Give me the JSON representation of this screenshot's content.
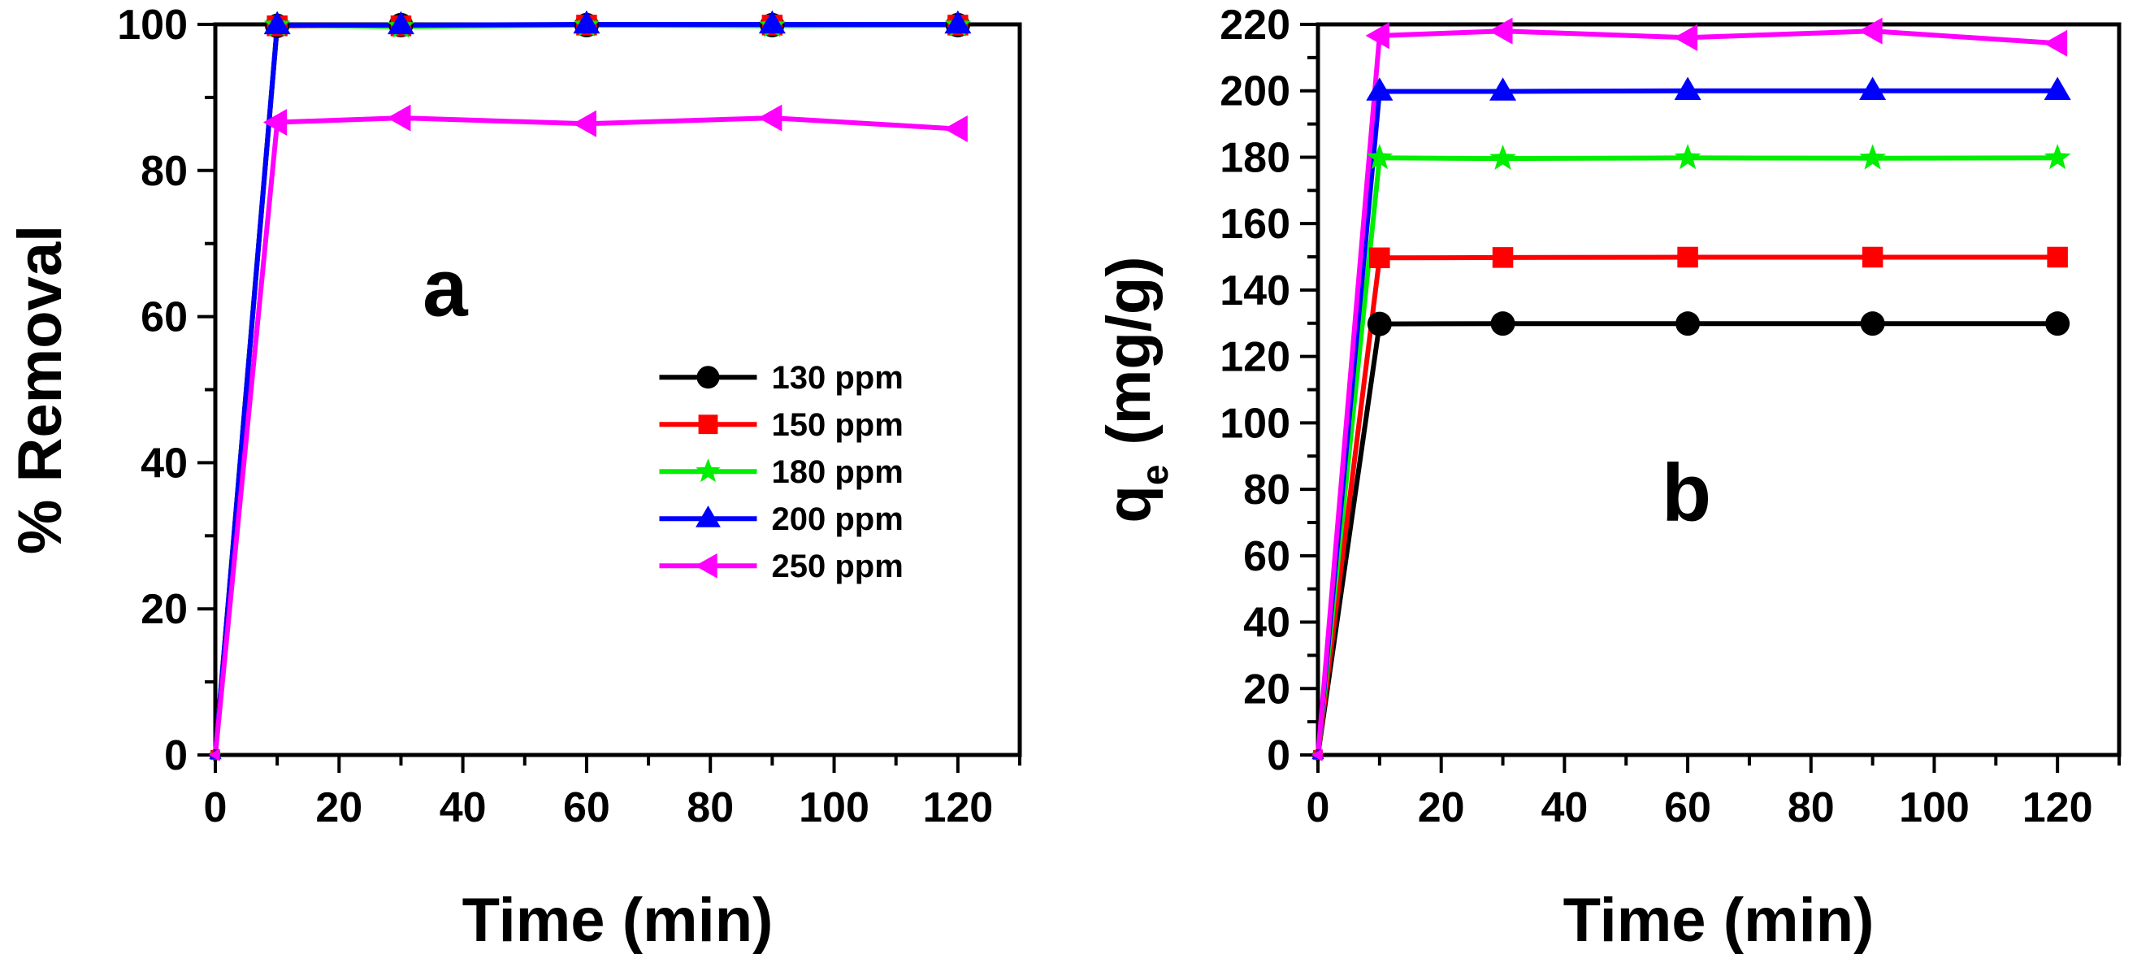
{
  "chart_data": [
    {
      "type": "line",
      "panel_label": "a",
      "xlabel": "Time (min)",
      "ylabel": "% Removal",
      "xlim": [
        0,
        130
      ],
      "ylim": [
        0,
        100
      ],
      "x_ticks": [
        0,
        20,
        40,
        60,
        80,
        100,
        120
      ],
      "y_ticks": [
        0,
        20,
        40,
        60,
        80,
        100
      ],
      "legend": "right-middle",
      "grid": false,
      "x": [
        0,
        10,
        30,
        60,
        90,
        120
      ],
      "series": [
        {
          "name": "130 ppm",
          "color": "#000000",
          "marker": "circle",
          "values": [
            0,
            99.8,
            99.9,
            99.9,
            99.9,
            99.9
          ]
        },
        {
          "name": "150 ppm",
          "color": "#ff0000",
          "marker": "square",
          "values": [
            0,
            99.8,
            99.8,
            99.9,
            99.9,
            99.9
          ]
        },
        {
          "name": "180 ppm",
          "color": "#00ee00",
          "marker": "star",
          "values": [
            0,
            99.9,
            99.7,
            99.9,
            99.8,
            99.9
          ]
        },
        {
          "name": "200 ppm",
          "color": "#0000ff",
          "marker": "triangle-up",
          "values": [
            0,
            99.9,
            99.9,
            100,
            100,
            100
          ]
        },
        {
          "name": "250 ppm",
          "color": "#ff00ff",
          "marker": "triangle-left",
          "values": [
            0,
            86.6,
            87.2,
            86.4,
            87.2,
            85.7
          ]
        }
      ]
    },
    {
      "type": "line",
      "panel_label": "b",
      "xlabel": "Time (min)",
      "ylabel_main": "q",
      "ylabel_sub": "e",
      "ylabel_unit": "(mg/g)",
      "xlim": [
        0,
        130
      ],
      "ylim": [
        0,
        220
      ],
      "x_ticks": [
        0,
        20,
        40,
        60,
        80,
        100,
        120
      ],
      "y_ticks": [
        0,
        20,
        40,
        60,
        80,
        100,
        120,
        140,
        160,
        180,
        200,
        220
      ],
      "grid": false,
      "x": [
        0,
        10,
        30,
        60,
        90,
        120
      ],
      "series": [
        {
          "color": "#000000",
          "marker": "circle",
          "values": [
            0,
            129.8,
            129.9,
            129.9,
            129.9,
            129.9
          ]
        },
        {
          "color": "#ff0000",
          "marker": "square",
          "values": [
            0,
            149.7,
            149.8,
            149.9,
            149.9,
            149.9
          ]
        },
        {
          "color": "#00ee00",
          "marker": "star",
          "values": [
            0,
            179.8,
            179.6,
            179.8,
            179.7,
            179.8
          ]
        },
        {
          "color": "#0000ff",
          "marker": "triangle-up",
          "values": [
            0,
            199.8,
            199.8,
            200,
            200,
            200
          ]
        },
        {
          "color": "#ff00ff",
          "marker": "triangle-left",
          "values": [
            0,
            216.6,
            218.0,
            216.0,
            218.0,
            214.3
          ]
        }
      ]
    }
  ]
}
